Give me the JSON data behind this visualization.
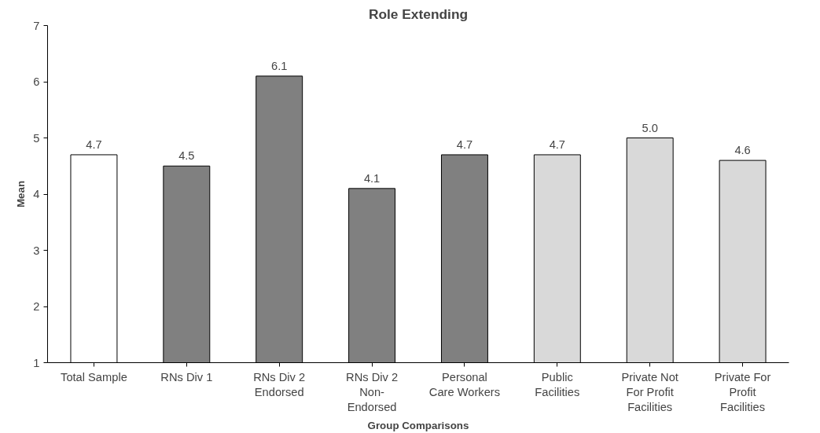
{
  "chart_data": {
    "type": "bar",
    "title": "Role Extending",
    "xlabel": "Group Comparisons",
    "ylabel": "Mean",
    "categories": [
      "Total Sample",
      "RNs Div 1",
      "RNs Div 2\nEndorsed",
      "RNs Div 2\nNon-\nEndorsed",
      "Personal\nCare Workers",
      "Public\nFacilities",
      "Private Not\nFor Profit\nFacilities",
      "Private For\nProfit\nFacilities"
    ],
    "values": [
      4.7,
      4.5,
      6.1,
      4.1,
      4.7,
      4.7,
      5.0,
      4.6
    ],
    "value_labels": [
      "4.7",
      "4.5",
      "6.1",
      "4.1",
      "4.7",
      "4.7",
      "5.0",
      "4.6"
    ],
    "colors": [
      "#ffffff",
      "#808080",
      "#808080",
      "#808080",
      "#808080",
      "#d9d9d9",
      "#d9d9d9",
      "#d9d9d9"
    ],
    "ylim": [
      1,
      7
    ],
    "yticks": [
      1,
      2,
      3,
      4,
      5,
      6,
      7
    ],
    "grid": false
  }
}
